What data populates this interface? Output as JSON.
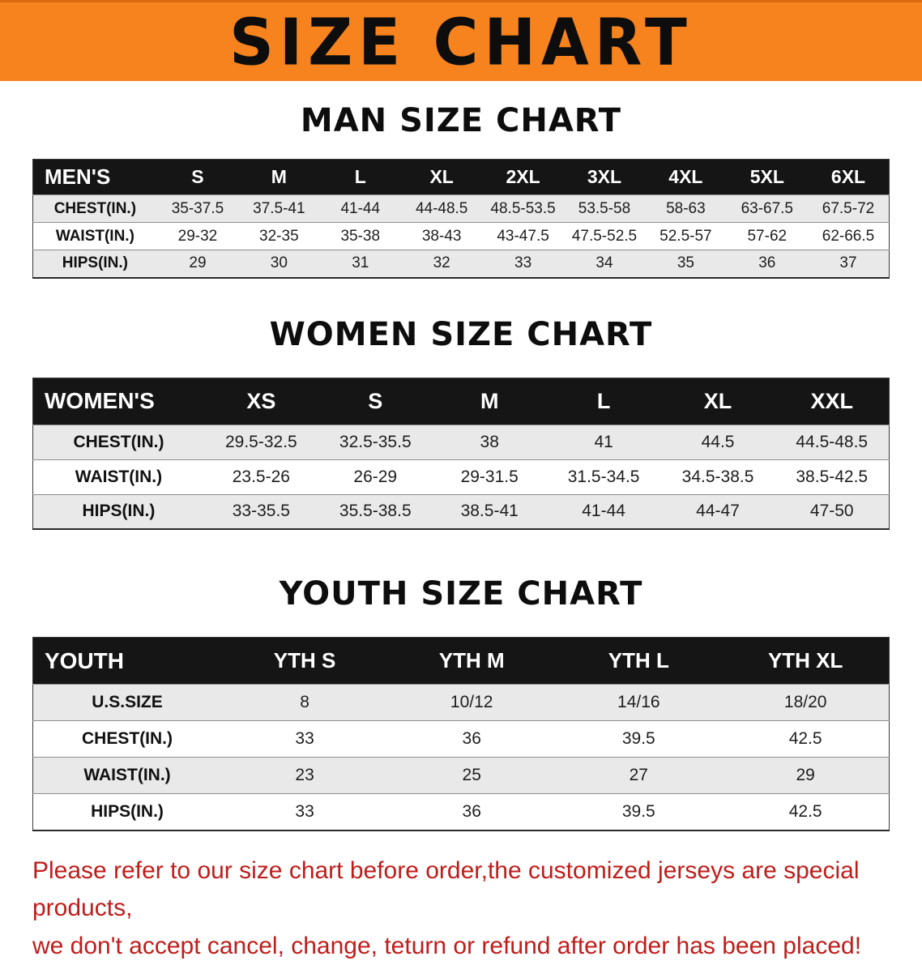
{
  "banner": {
    "title": "SIZE CHART",
    "bg_color": "#f6831d",
    "text_color": "#0d0d0d"
  },
  "sections": [
    {
      "id": "men",
      "heading": "MAN SIZE CHART",
      "header_label": "MEN'S",
      "columns": [
        "S",
        "M",
        "L",
        "XL",
        "2XL",
        "3XL",
        "4XL",
        "5XL",
        "6XL"
      ],
      "rows": [
        {
          "label": "CHEST(IN.)",
          "values": [
            "35-37.5",
            "37.5-41",
            "41-44",
            "44-48.5",
            "48.5-53.5",
            "53.5-58",
            "58-63",
            "63-67.5",
            "67.5-72"
          ]
        },
        {
          "label": "WAIST(IN.)",
          "values": [
            "29-32",
            "32-35",
            "35-38",
            "38-43",
            "43-47.5",
            "47.5-52.5",
            "52.5-57",
            "57-62",
            "62-66.5"
          ]
        },
        {
          "label": "HIPS(IN.)",
          "values": [
            "29",
            "30",
            "31",
            "32",
            "33",
            "34",
            "35",
            "36",
            "37"
          ]
        }
      ]
    },
    {
      "id": "women",
      "heading": "WOMEN SIZE CHART",
      "header_label": "WOMEN'S",
      "columns": [
        "XS",
        "S",
        "M",
        "L",
        "XL",
        "XXL"
      ],
      "rows": [
        {
          "label": "CHEST(IN.)",
          "values": [
            "29.5-32.5",
            "32.5-35.5",
            "38",
            "41",
            "44.5",
            "44.5-48.5"
          ]
        },
        {
          "label": "WAIST(IN.)",
          "values": [
            "23.5-26",
            "26-29",
            "29-31.5",
            "31.5-34.5",
            "34.5-38.5",
            "38.5-42.5"
          ]
        },
        {
          "label": "HIPS(IN.)",
          "values": [
            "33-35.5",
            "35.5-38.5",
            "38.5-41",
            "41-44",
            "44-47",
            "47-50"
          ]
        }
      ]
    },
    {
      "id": "youth",
      "heading": "YOUTH SIZE CHART",
      "header_label": "YOUTH",
      "columns": [
        "YTH S",
        "YTH M",
        "YTH L",
        "YTH XL"
      ],
      "rows": [
        {
          "label": "U.S.SIZE",
          "values": [
            "8",
            "10/12",
            "14/16",
            "18/20"
          ]
        },
        {
          "label": "CHEST(IN.)",
          "values": [
            "33",
            "36",
            "39.5",
            "42.5"
          ]
        },
        {
          "label": "WAIST(IN.)",
          "values": [
            "23",
            "25",
            "27",
            "29"
          ]
        },
        {
          "label": "HIPS(IN.)",
          "values": [
            "33",
            "36",
            "39.5",
            "42.5"
          ]
        }
      ]
    }
  ],
  "footer": {
    "line1": "Please refer to our size chart before order,the customized jerseys are special products,",
    "line2": "we don't accept cancel, change, teturn or refund after order has been placed!"
  }
}
